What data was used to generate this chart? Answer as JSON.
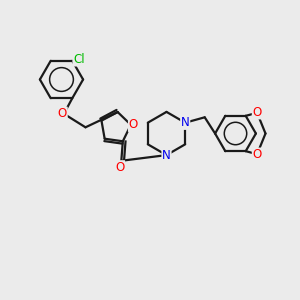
{
  "bg_color": "#ebebeb",
  "bond_color": "#1a1a1a",
  "bond_width": 1.6,
  "atom_colors": {
    "O": "#ff0000",
    "N": "#0000ee",
    "Cl": "#00bb00",
    "C": "#1a1a1a"
  },
  "font_size": 8.5
}
